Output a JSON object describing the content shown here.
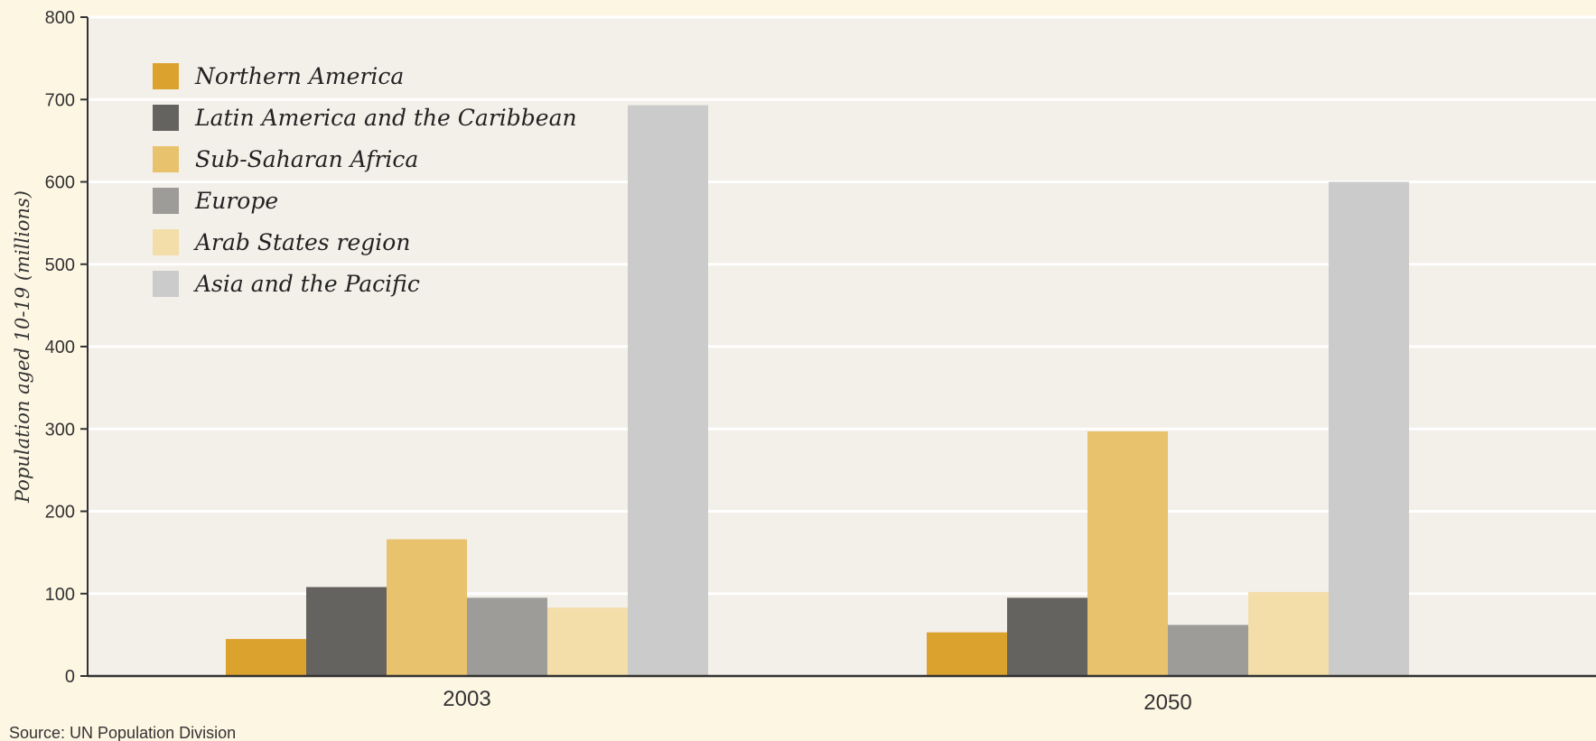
{
  "chart_data": {
    "type": "bar",
    "categories": [
      "2003",
      "2050"
    ],
    "series": [
      {
        "name": "Northern America",
        "color": "#dca22e",
        "values": [
          45,
          53
        ]
      },
      {
        "name": "Latin America and the Caribbean",
        "color": "#65635f",
        "values": [
          108,
          95
        ]
      },
      {
        "name": "Sub-Saharan Africa",
        "color": "#e8c26c",
        "values": [
          166,
          297
        ]
      },
      {
        "name": "Europe",
        "color": "#9d9c99",
        "values": [
          95,
          62
        ]
      },
      {
        "name": "Arab States region",
        "color": "#f3dda9",
        "values": [
          83,
          102
        ]
      },
      {
        "name": "Asia and the Pacific",
        "color": "#cbcbcb",
        "values": [
          693,
          600
        ]
      }
    ],
    "ylabel": "Population aged 10-19 (millions)",
    "xlabel": "",
    "ylim": [
      0,
      800
    ],
    "yticks": [
      0,
      100,
      200,
      300,
      400,
      500,
      600,
      700,
      800
    ],
    "grid": true,
    "legend": "top-left"
  },
  "source": "Source: UN Population Division",
  "colors": {
    "page_background": "#fdf6e3",
    "plot_background": "#f3efe9",
    "gridline": "#ffffff",
    "axis": "#333333"
  }
}
